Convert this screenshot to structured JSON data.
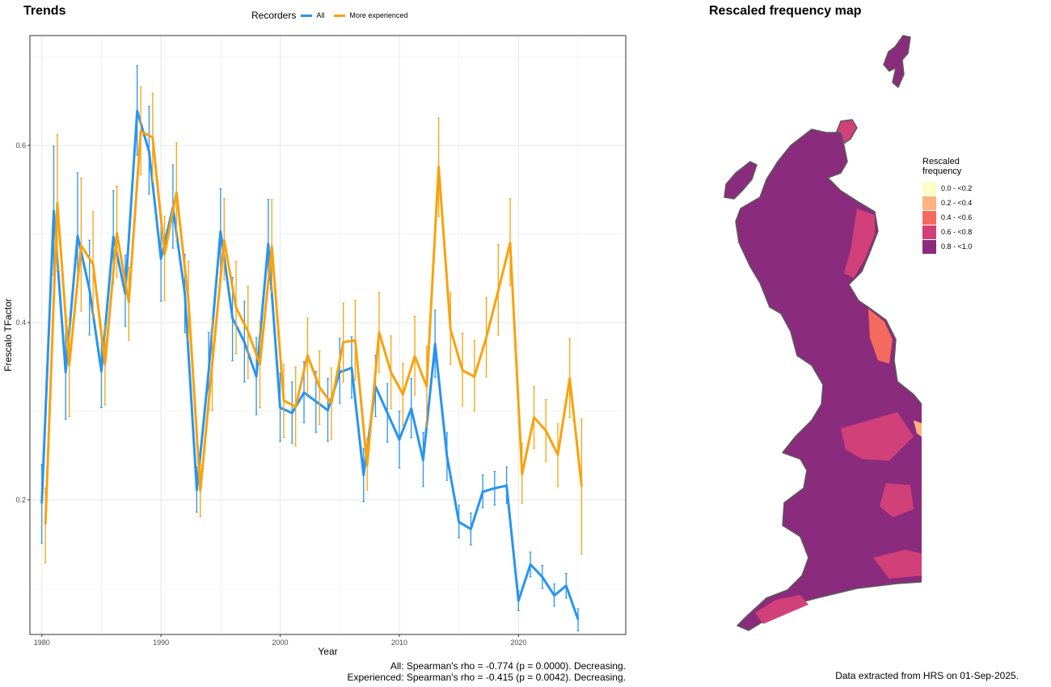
{
  "left_title": "Trends",
  "right_title": "Rescaled frequency map",
  "legend": {
    "title": "Recorders",
    "items": [
      {
        "label": "All",
        "color": "#2894f1"
      },
      {
        "label": "More experienced",
        "color": "#f9a20c"
      }
    ]
  },
  "stats": {
    "all": "All: Spearman's rho = -0.774 (p = 0.0000). Decreasing.",
    "experienced": "Experienced: Spearman's rho = -0.415 (p = 0.0042). Decreasing."
  },
  "footer": "Data extracted from HRS on 01-Sep-2025.",
  "map_legend": {
    "title": "Rescaled frequency",
    "items": [
      {
        "label": "0.0 - <0.2",
        "color": "#fdfdc4"
      },
      {
        "label": "0.2 - <0.4",
        "color": "#fcb37e"
      },
      {
        "label": "0.4 - <0.6",
        "color": "#f46a5e"
      },
      {
        "label": "0.6 - <0.8",
        "color": "#d24079"
      },
      {
        "label": "0.8 - <1.0",
        "color": "#8b2b7d"
      }
    ]
  },
  "chart_data": {
    "type": "line",
    "xlabel": "Year",
    "ylabel": "Frescalo TFactor",
    "xlim": [
      1979,
      2029
    ],
    "ylim": [
      0.048,
      0.724
    ],
    "xticks": [
      1980,
      1990,
      2000,
      2010,
      2020
    ],
    "yticks": [
      0.2,
      0.4,
      0.6
    ],
    "grid": true,
    "legend_position": "top",
    "series": [
      {
        "name": "All",
        "color": "#2894f1",
        "x": [
          1980,
          1981,
          1982,
          1983,
          1984,
          1985,
          1986,
          1987,
          1988,
          1989,
          1990,
          1991,
          1992,
          1993,
          1994,
          1995,
          1996,
          1997,
          1998,
          1999,
          2000,
          2001,
          2002,
          2003,
          2004,
          2005,
          2006,
          2007,
          2008,
          2009,
          2010,
          2011,
          2012,
          2013,
          2014,
          2015,
          2016,
          2017,
          2018,
          2019,
          2020,
          2021,
          2022,
          2023,
          2024,
          2025
        ],
        "y": [
          0.196,
          0.526,
          0.344,
          0.498,
          0.437,
          0.345,
          0.497,
          0.433,
          0.639,
          0.593,
          0.472,
          0.53,
          0.433,
          0.211,
          0.345,
          0.503,
          0.405,
          0.378,
          0.339,
          0.489,
          0.304,
          0.298,
          0.321,
          0.311,
          0.301,
          0.344,
          0.349,
          0.228,
          0.328,
          0.298,
          0.268,
          0.303,
          0.245,
          0.376,
          0.249,
          0.175,
          0.167,
          0.209,
          0.213,
          0.216,
          0.086,
          0.127,
          0.113,
          0.092,
          0.103,
          0.065
        ],
        "lower": [
          0.151,
          0.454,
          0.291,
          0.441,
          0.386,
          0.304,
          0.444,
          0.396,
          0.589,
          0.545,
          0.424,
          0.484,
          0.389,
          0.186,
          0.302,
          0.456,
          0.357,
          0.333,
          0.296,
          0.439,
          0.266,
          0.264,
          0.287,
          0.276,
          0.266,
          0.309,
          0.315,
          0.198,
          0.294,
          0.265,
          0.236,
          0.27,
          0.215,
          0.338,
          0.222,
          0.157,
          0.149,
          0.191,
          0.194,
          0.196,
          0.075,
          0.113,
          0.1,
          0.08,
          0.089,
          0.052
        ],
        "upper": [
          0.24,
          0.599,
          0.397,
          0.569,
          0.493,
          0.386,
          0.549,
          0.476,
          0.69,
          0.644,
          0.521,
          0.578,
          0.477,
          0.237,
          0.389,
          0.551,
          0.451,
          0.424,
          0.383,
          0.539,
          0.343,
          0.333,
          0.356,
          0.345,
          0.337,
          0.382,
          0.384,
          0.258,
          0.363,
          0.331,
          0.3,
          0.337,
          0.276,
          0.414,
          0.276,
          0.194,
          0.185,
          0.228,
          0.232,
          0.237,
          0.097,
          0.141,
          0.126,
          0.105,
          0.117,
          0.077
        ]
      },
      {
        "name": "More experienced",
        "color": "#f9a20c",
        "x": [
          1980,
          1981,
          1982,
          1983,
          1984,
          1985,
          1986,
          1987,
          1988,
          1989,
          1990,
          1991,
          1992,
          1993,
          1994,
          1995,
          1996,
          1997,
          1998,
          1999,
          2000,
          2001,
          2002,
          2003,
          2004,
          2005,
          2006,
          2007,
          2008,
          2009,
          2010,
          2011,
          2012,
          2013,
          2014,
          2015,
          2016,
          2017,
          2018,
          2019,
          2020,
          2021,
          2022,
          2023,
          2024,
          2025
        ],
        "y": [
          0.172,
          0.535,
          0.352,
          0.487,
          0.466,
          0.353,
          0.501,
          0.423,
          0.616,
          0.609,
          0.477,
          0.547,
          0.426,
          0.21,
          0.353,
          0.493,
          0.417,
          0.39,
          0.353,
          0.486,
          0.312,
          0.305,
          0.363,
          0.327,
          0.309,
          0.378,
          0.38,
          0.239,
          0.389,
          0.344,
          0.319,
          0.362,
          0.328,
          0.576,
          0.392,
          0.346,
          0.339,
          0.383,
          0.436,
          0.49,
          0.229,
          0.293,
          0.278,
          0.251,
          0.337,
          0.215
        ],
        "lower": [
          0.129,
          0.459,
          0.294,
          0.413,
          0.405,
          0.307,
          0.451,
          0.38,
          0.567,
          0.559,
          0.425,
          0.492,
          0.38,
          0.181,
          0.301,
          0.448,
          0.365,
          0.337,
          0.304,
          0.434,
          0.27,
          0.261,
          0.319,
          0.285,
          0.268,
          0.333,
          0.335,
          0.211,
          0.344,
          0.303,
          0.284,
          0.318,
          0.282,
          0.52,
          0.353,
          0.306,
          0.3,
          0.339,
          0.386,
          0.442,
          0.196,
          0.258,
          0.243,
          0.215,
          0.293,
          0.139
        ],
        "upper": [
          0.213,
          0.612,
          0.405,
          0.563,
          0.525,
          0.397,
          0.554,
          0.463,
          0.666,
          0.659,
          0.52,
          0.603,
          0.469,
          0.239,
          0.405,
          0.54,
          0.469,
          0.441,
          0.401,
          0.539,
          0.353,
          0.35,
          0.405,
          0.368,
          0.349,
          0.422,
          0.425,
          0.268,
          0.434,
          0.385,
          0.354,
          0.407,
          0.373,
          0.631,
          0.434,
          0.388,
          0.38,
          0.428,
          0.488,
          0.54,
          0.264,
          0.328,
          0.313,
          0.286,
          0.382,
          0.291
        ]
      }
    ]
  }
}
